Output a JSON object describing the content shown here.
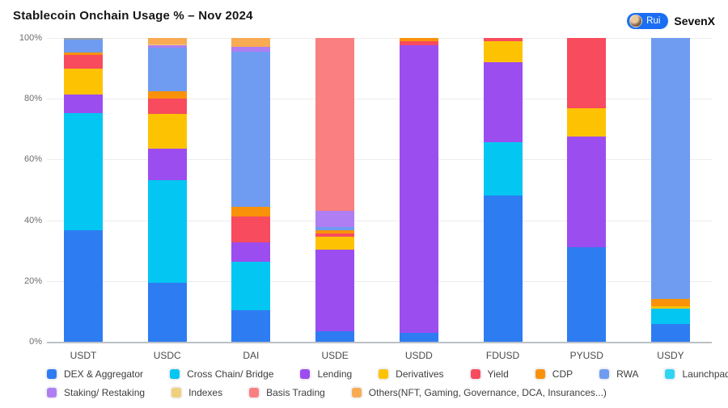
{
  "title": "Stablecoin Onchain Usage % – Nov 2024",
  "badge": {
    "rui": "Rui",
    "brand": "SevenX",
    "pill_color": "#1b6ef3"
  },
  "chart_data": {
    "type": "bar",
    "stacked": true,
    "title": "Stablecoin Onchain Usage % – Nov 2024",
    "xlabel": "",
    "ylabel": "",
    "ylim": [
      0,
      100
    ],
    "grid": true,
    "legend_position": "bottom",
    "y_ticks": [
      {
        "label": "100%",
        "value": 100
      },
      {
        "label": "80%",
        "value": 80
      },
      {
        "label": "60%",
        "value": 60
      },
      {
        "label": "40%",
        "value": 40
      },
      {
        "label": "20%",
        "value": 20
      },
      {
        "label": "0%",
        "value": 0
      }
    ],
    "categories": [
      "USDT",
      "USDC",
      "DAI",
      "USDE",
      "USDD",
      "FDUSD",
      "PYUSD",
      "USDY"
    ],
    "series_colors": {
      "DEX & Aggregator": "#2E7CF2",
      "Cross Chain/ Bridge": "#04C6F2",
      "Lending": "#9C4DF0",
      "Derivatives": "#FDC303",
      "Yield": "#F84B5E",
      "CDP": "#F9920A",
      "RWA": "#6F9BF0",
      "Launchpad": "#2FD5F2",
      "Staking/ Restaking": "#AE7EF2",
      "Indexes": "#F0D07D",
      "Basis Trading": "#F97F80",
      "Others(NFT, Gaming, Governance, DCA, Insurances...)": "#F8AB52",
      "Other": "#9AA0A6"
    },
    "legend_rows": [
      [
        "DEX & Aggregator",
        "Cross Chain/ Bridge",
        "Lending",
        "Derivatives",
        "Yield",
        "CDP",
        "RWA",
        "Launchpad"
      ],
      [
        "Staking/ Restaking",
        "Indexes",
        "Basis Trading",
        "Others(NFT, Gaming, Governance, DCA, Insurances...)"
      ]
    ],
    "bars": [
      {
        "category": "USDT",
        "segments": [
          [
            "DEX & Aggregator",
            36.6
          ],
          [
            "Cross Chain/ Bridge",
            38.8
          ],
          [
            "Lending",
            6.0
          ],
          [
            "Derivatives",
            8.4
          ],
          [
            "Yield",
            4.6
          ],
          [
            "CDP",
            0.8
          ],
          [
            "RWA",
            4.4
          ],
          [
            "Other",
            0.4
          ]
        ]
      },
      {
        "category": "USDC",
        "segments": [
          [
            "DEX & Aggregator",
            19.5
          ],
          [
            "Cross Chain/ Bridge",
            33.8
          ],
          [
            "Lending",
            10.3
          ],
          [
            "Derivatives",
            11.5
          ],
          [
            "Yield",
            5.0
          ],
          [
            "CDP",
            2.4
          ],
          [
            "RWA",
            14.4
          ],
          [
            "Staking/ Restaking",
            0.6
          ],
          [
            "Indexes",
            0.5
          ],
          [
            "Others(NFT, Gaming, Governance, DCA, Insurances...)",
            2.0
          ]
        ]
      },
      {
        "category": "DAI",
        "segments": [
          [
            "DEX & Aggregator",
            10.3
          ],
          [
            "Cross Chain/ Bridge",
            16.0
          ],
          [
            "Lending",
            6.5
          ],
          [
            "Yield",
            8.5
          ],
          [
            "CDP",
            3.0
          ],
          [
            "RWA",
            51.2
          ],
          [
            "Staking/ Restaking",
            1.5
          ],
          [
            "Others(NFT, Gaming, Governance, DCA, Insurances...)",
            3.0
          ]
        ]
      },
      {
        "category": "USDE",
        "segments": [
          [
            "DEX & Aggregator",
            3.5
          ],
          [
            "Lending",
            26.8
          ],
          [
            "Derivatives",
            4.4
          ],
          [
            "Yield",
            1.0
          ],
          [
            "CDP",
            1.0
          ],
          [
            "RWA",
            1.1
          ],
          [
            "Staking/ Restaking",
            5.3
          ],
          [
            "Basis Trading",
            56.9
          ]
        ]
      },
      {
        "category": "USDD",
        "segments": [
          [
            "DEX & Aggregator",
            2.8
          ],
          [
            "Lending",
            94.7
          ],
          [
            "Yield",
            1.5
          ],
          [
            "CDP",
            1.0
          ]
        ]
      },
      {
        "category": "FDUSD",
        "segments": [
          [
            "DEX & Aggregator",
            48.2
          ],
          [
            "Cross Chain/ Bridge",
            17.4
          ],
          [
            "Lending",
            26.4
          ],
          [
            "Derivatives",
            7.0
          ],
          [
            "Yield",
            1.0
          ]
        ]
      },
      {
        "category": "PYUSD",
        "segments": [
          [
            "DEX & Aggregator",
            31.2
          ],
          [
            "Lending",
            36.3
          ],
          [
            "Derivatives",
            9.5
          ],
          [
            "Yield",
            23.0
          ]
        ]
      },
      {
        "category": "USDY",
        "segments": [
          [
            "DEX & Aggregator",
            5.8
          ],
          [
            "Cross Chain/ Bridge",
            5.2
          ],
          [
            "Derivatives",
            0.8
          ],
          [
            "CDP",
            2.2
          ],
          [
            "RWA",
            86.0
          ]
        ]
      }
    ]
  }
}
